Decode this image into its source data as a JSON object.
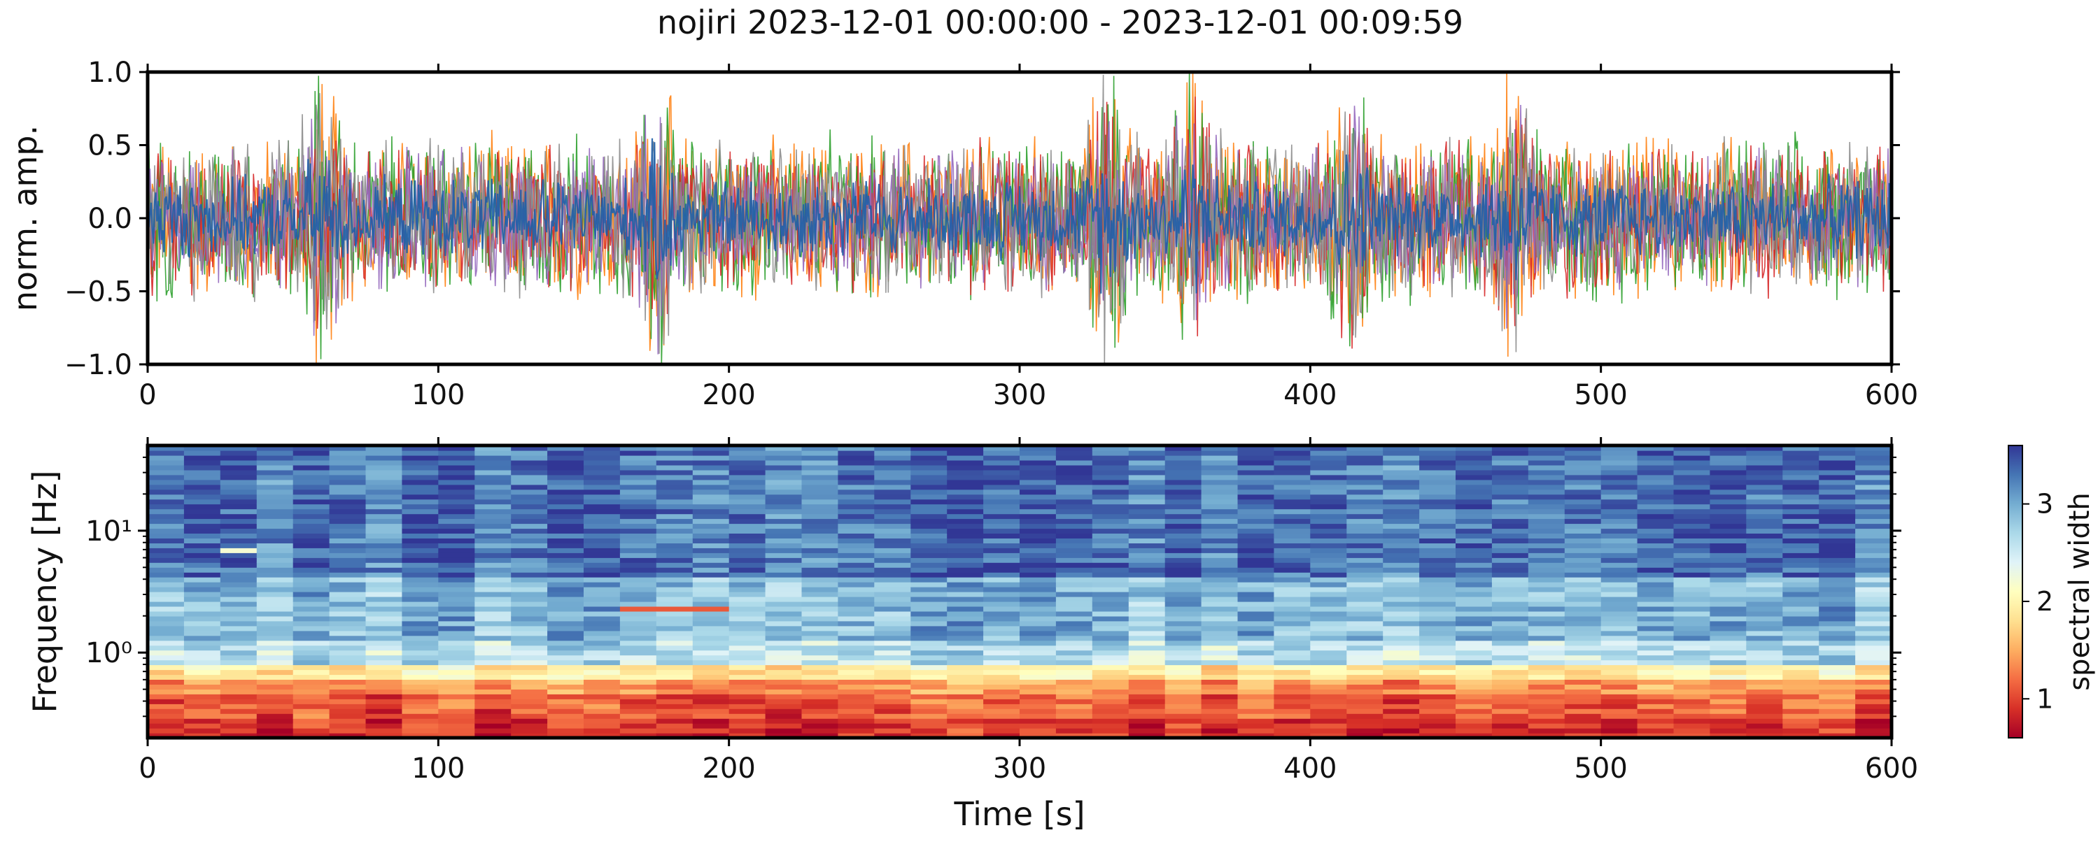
{
  "title": "nojiri 2023-12-01 00:00:00 - 2023-12-01 00:09:59",
  "chart_data": [
    {
      "type": "line",
      "ylabel": "norm. amp.",
      "xlim": [
        0,
        600
      ],
      "ylim": [
        -1.0,
        1.0
      ],
      "x_ticks": [
        "0",
        "100",
        "200",
        "300",
        "400",
        "500",
        "600"
      ],
      "y_ticks": [
        "1.0",
        "0.5",
        "0.0",
        "−0.5",
        "−1.0"
      ],
      "series": [
        {
          "color": "#ff7f0e",
          "amplitude": 0.45
        },
        {
          "color": "#2ca02c",
          "amplitude": 0.45
        },
        {
          "color": "#d62728",
          "amplitude": 0.4
        },
        {
          "color": "#9467bd",
          "amplitude": 0.38
        },
        {
          "color": "#8c8c8c",
          "amplitude": 0.42
        },
        {
          "color": "#1f5fa8",
          "amplitude": 0.22
        }
      ],
      "bursts_s": [
        60,
        175,
        330,
        360,
        415,
        470
      ]
    },
    {
      "type": "heatmap",
      "xlabel": "Time [s]",
      "ylabel": "Frequency [Hz]",
      "xlim": [
        0,
        600
      ],
      "ylim": [
        0.2,
        50
      ],
      "y_scale": "log",
      "x_ticks": [
        "0",
        "100",
        "200",
        "300",
        "400",
        "500",
        "600"
      ],
      "y_ticks": [
        "10¹",
        "10⁰"
      ],
      "time_bins": 48,
      "colorbar": {
        "label": "spectral width",
        "range": [
          0.6,
          3.6
        ],
        "ticks": [
          "3",
          "2",
          "1"
        ],
        "colormap": "RdYlBu"
      },
      "spectral_width_by_band": [
        {
          "freq_hz": [
            0.2,
            0.3
          ],
          "value": 0.9
        },
        {
          "freq_hz": [
            0.3,
            0.45
          ],
          "value": 1.1
        },
        {
          "freq_hz": [
            0.45,
            0.6
          ],
          "value": 1.4
        },
        {
          "freq_hz": [
            0.6,
            0.8
          ],
          "value": 1.9
        },
        {
          "freq_hz": [
            0.8,
            1.3
          ],
          "value": 2.6
        },
        {
          "freq_hz": [
            1.3,
            4.0
          ],
          "value": 2.9
        },
        {
          "freq_hz": [
            4.0,
            50
          ],
          "value": 3.3
        }
      ],
      "annotations": [
        {
          "time_s": [
            157,
            197
          ],
          "freq_hz": [
            2.1,
            2.4
          ],
          "value": 1.1
        },
        {
          "time_s": [
            26,
            38
          ],
          "freq_hz": [
            6.5,
            7.5
          ],
          "value": 2.2
        }
      ]
    }
  ]
}
